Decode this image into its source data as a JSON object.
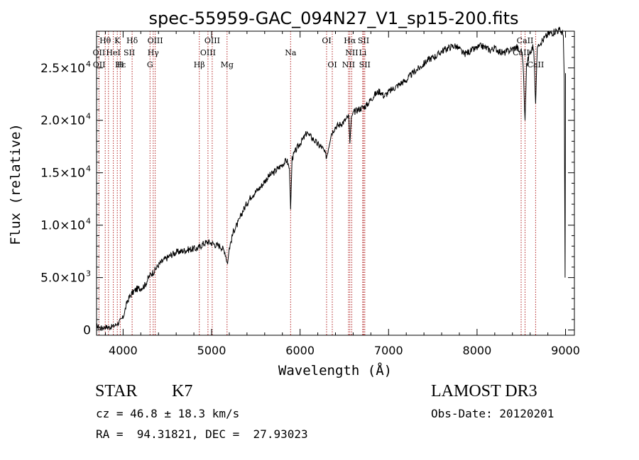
{
  "chart_data": {
    "type": "line",
    "title": "spec-55959-GAC_094N27_V1_sp15-200.fits",
    "xlabel": "Wavelength (Å)",
    "ylabel": "Flux (relative)",
    "xlim": [
      3700,
      9100
    ],
    "ylim": [
      -500,
      28500
    ],
    "x_ticks": [
      4000,
      5000,
      6000,
      7000,
      8000,
      9000
    ],
    "x_tick_labels": [
      "4000",
      "5000",
      "6000",
      "7000",
      "8000",
      "9000"
    ],
    "y_ticks": [
      {
        "value": 0,
        "label": "0",
        "exp": ""
      },
      {
        "value": 5000,
        "label": "5.0×10",
        "exp": "3"
      },
      {
        "value": 10000,
        "label": "1.0×10",
        "exp": "4"
      },
      {
        "value": 15000,
        "label": "1.5×10",
        "exp": "4"
      },
      {
        "value": 20000,
        "label": "2.0×10",
        "exp": "4"
      },
      {
        "value": 25000,
        "label": "2.5×10",
        "exp": "4"
      }
    ],
    "line_color": "#000000",
    "marker_color": "#b22222",
    "series": [
      {
        "name": "flux",
        "x": [
          3700,
          3750,
          3800,
          3850,
          3900,
          3950,
          4000,
          4050,
          4100,
          4150,
          4200,
          4250,
          4300,
          4350,
          4400,
          4450,
          4500,
          4550,
          4600,
          4650,
          4700,
          4750,
          4800,
          4850,
          4900,
          4950,
          5000,
          5050,
          5100,
          5150,
          5180,
          5200,
          5250,
          5300,
          5350,
          5400,
          5450,
          5500,
          5550,
          5600,
          5650,
          5700,
          5750,
          5800,
          5850,
          5880,
          5893,
          5910,
          5950,
          6000,
          6050,
          6080,
          6100,
          6150,
          6200,
          6250,
          6300,
          6350,
          6400,
          6450,
          6500,
          6550,
          6563,
          6580,
          6600,
          6650,
          6700,
          6750,
          6800,
          6850,
          6900,
          6950,
          7000,
          7050,
          7100,
          7150,
          7200,
          7250,
          7300,
          7350,
          7400,
          7450,
          7500,
          7550,
          7600,
          7650,
          7700,
          7750,
          7800,
          7850,
          7900,
          7950,
          8000,
          8050,
          8100,
          8150,
          8200,
          8250,
          8300,
          8350,
          8400,
          8450,
          8480,
          8500,
          8520,
          8542,
          8560,
          8600,
          8640,
          8662,
          8680,
          8700,
          8750,
          8800,
          8850,
          8900,
          8950,
          8975,
          8985,
          8995,
          9000
        ],
        "y": [
          400,
          200,
          300,
          250,
          400,
          700,
          1200,
          2800,
          3500,
          3900,
          4000,
          4300,
          5200,
          5600,
          6200,
          6600,
          6900,
          7200,
          7400,
          7500,
          7600,
          7700,
          7750,
          7800,
          8200,
          8400,
          8300,
          8100,
          8000,
          7500,
          6300,
          7800,
          9500,
          10200,
          11300,
          12100,
          12800,
          13200,
          13600,
          14200,
          14700,
          15000,
          15400,
          15800,
          16200,
          15400,
          11500,
          16400,
          17100,
          17800,
          18400,
          18900,
          18600,
          18200,
          17700,
          17400,
          16500,
          18700,
          19400,
          19600,
          19900,
          20400,
          17800,
          20300,
          20700,
          21000,
          21200,
          21400,
          22000,
          22500,
          22800,
          22300,
          22700,
          23000,
          23300,
          23600,
          23800,
          24300,
          24700,
          25000,
          25400,
          25800,
          26000,
          26200,
          26600,
          26800,
          27000,
          27100,
          26800,
          26300,
          26500,
          26700,
          26900,
          27100,
          26900,
          26700,
          26900,
          26600,
          26400,
          26600,
          26800,
          27000,
          26500,
          26800,
          25500,
          20000,
          25200,
          26600,
          27000,
          21600,
          26900,
          27400,
          27700,
          28200,
          28400,
          28600,
          28500,
          28100,
          24000,
          5000,
          24500
        ]
      }
    ],
    "lines_top": [
      {
        "label": "Hδ",
        "wl": 4102
      },
      {
        "label": "K",
        "wl": 3934
      },
      {
        "label": "Hθ",
        "wl": 3798
      },
      {
        "label": "OIII",
        "wl": 4363
      },
      {
        "label": "OIII",
        "wl": 5007
      },
      {
        "label": "OI",
        "wl": 6300
      },
      {
        "label": "Hα",
        "wl": 6563
      },
      {
        "label": "SII",
        "wl": 6717
      },
      {
        "label": "CaII",
        "wl": 8542
      }
    ],
    "lines_mid": [
      {
        "label": "OII",
        "wl": 3727
      },
      {
        "label": "HeI",
        "wl": 3889
      },
      {
        "label": "SII",
        "wl": 4070
      },
      {
        "label": "Hγ",
        "wl": 4340
      },
      {
        "label": "OIII",
        "wl": 4959
      },
      {
        "label": "Na",
        "wl": 5893
      },
      {
        "label": "NII",
        "wl": 6584
      },
      {
        "label": "Li",
        "wl": 6708
      },
      {
        "label": "CaII",
        "wl": 8498
      }
    ],
    "lines_low": [
      {
        "label": "OII",
        "wl": 3729
      },
      {
        "label": "Hε",
        "wl": 3970
      },
      {
        "label": "H",
        "wl": 3968
      },
      {
        "label": "G",
        "wl": 4304
      },
      {
        "label": "Hβ",
        "wl": 4861
      },
      {
        "label": "Mg",
        "wl": 5175
      },
      {
        "label": "OI",
        "wl": 6364
      },
      {
        "label": "NII",
        "wl": 6548
      },
      {
        "label": "SII",
        "wl": 6731
      },
      {
        "label": "CaII",
        "wl": 8662
      }
    ],
    "marker_positions": [
      3727,
      3798,
      3835,
      3889,
      3934,
      3968,
      4102,
      4304,
      4340,
      4363,
      4861,
      4959,
      5007,
      5175,
      5893,
      6300,
      6364,
      6548,
      6563,
      6584,
      6708,
      6717,
      6731,
      8498,
      8542,
      8662
    ]
  },
  "info": {
    "class": "STAR",
    "subclass": "K7",
    "survey": "LAMOST DR3",
    "cz": "cz = 46.8 ± 18.3 km/s",
    "obs_date": "Obs-Date: 20120201",
    "radec": "RA =  94.31821, DEC =  27.93023"
  }
}
